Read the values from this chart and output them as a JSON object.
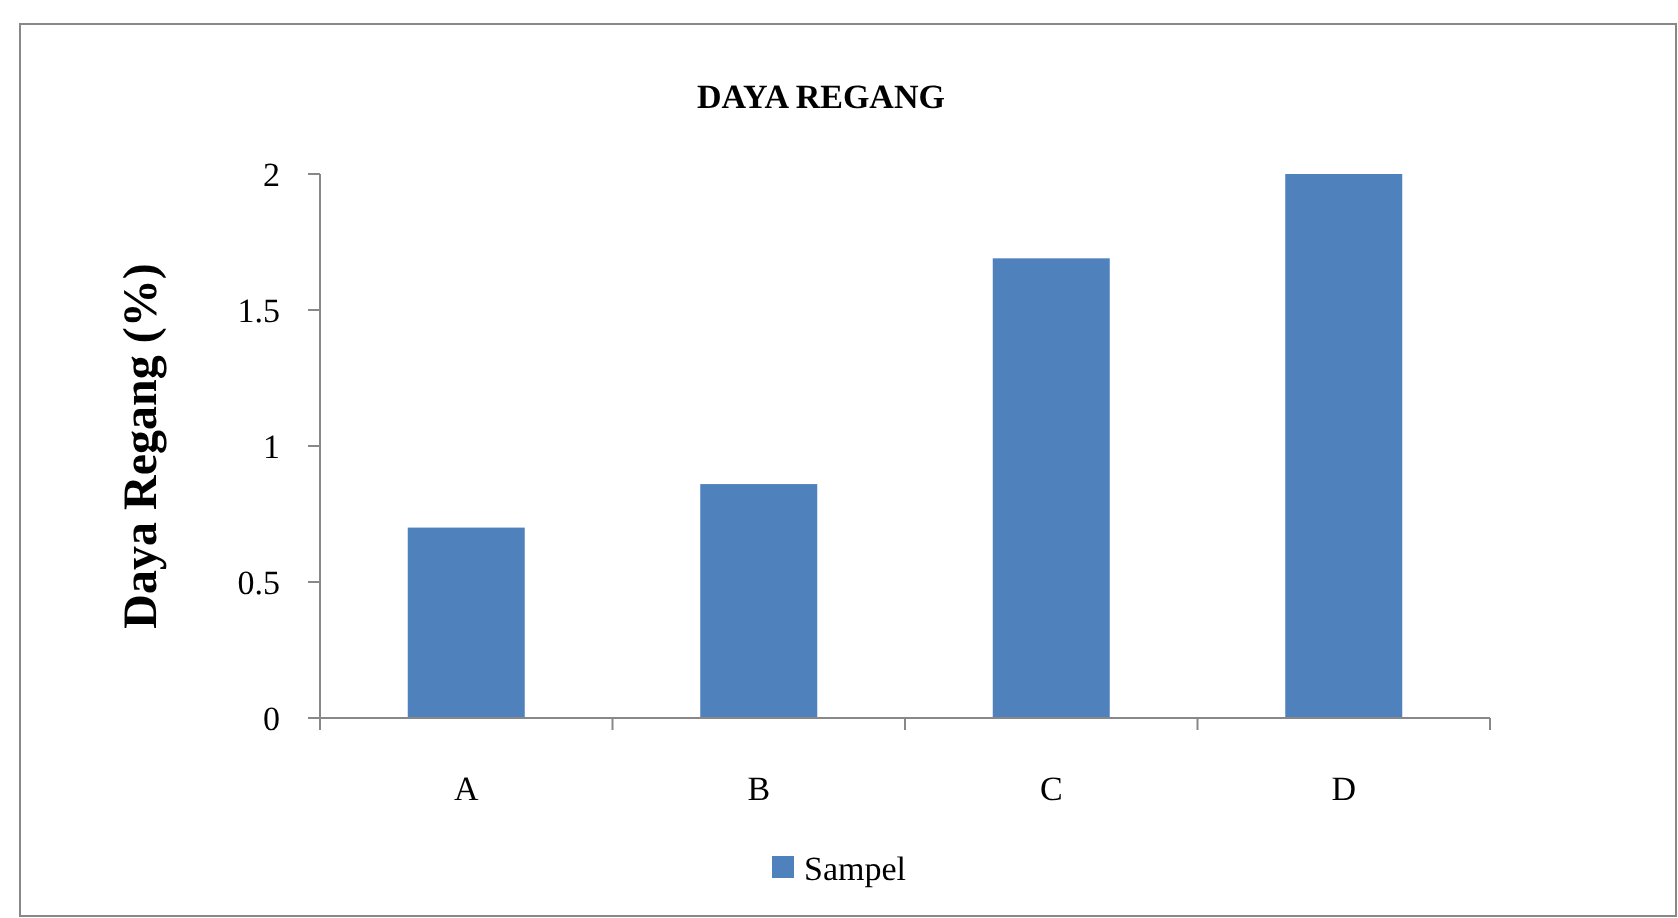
{
  "chart_data": {
    "type": "bar",
    "title": "DAYA REGANG",
    "ylabel": "Daya Regang (%)",
    "categories": [
      "A",
      "B",
      "C",
      "D"
    ],
    "series": [
      {
        "name": "Sampel",
        "color": "#4f81bd",
        "values": [
          0.7,
          0.86,
          1.69,
          2.0
        ]
      }
    ],
    "ylim": [
      0,
      2
    ],
    "yticks": [
      0,
      {
        "value": 0.5,
        "label": "0.5"
      },
      1,
      {
        "value": 1.5,
        "label": "1.5"
      },
      2
    ],
    "grid": false,
    "legend": "bottom"
  }
}
